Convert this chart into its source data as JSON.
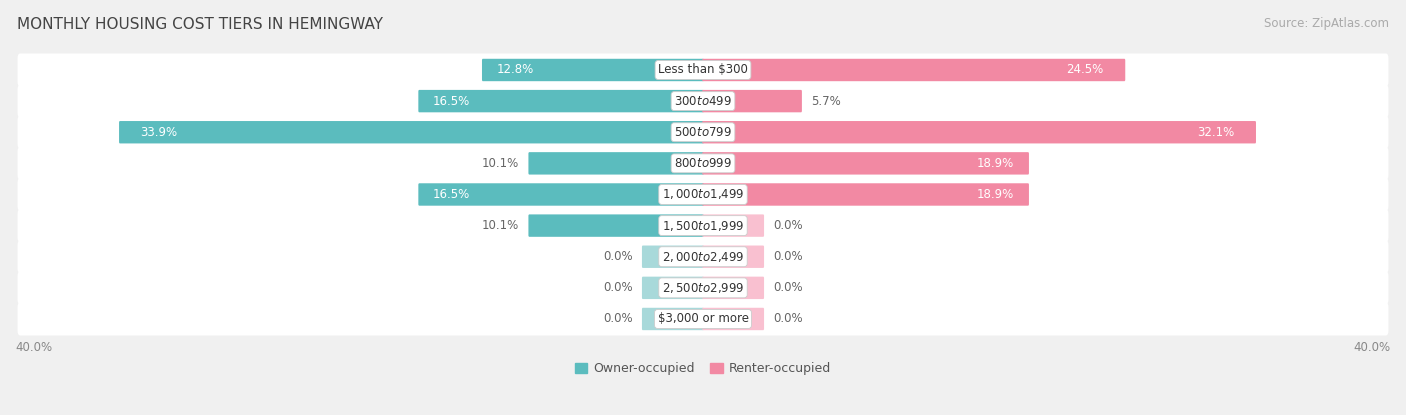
{
  "title": "MONTHLY HOUSING COST TIERS IN HEMINGWAY",
  "source": "Source: ZipAtlas.com",
  "categories": [
    "Less than $300",
    "$300 to $499",
    "$500 to $799",
    "$800 to $999",
    "$1,000 to $1,499",
    "$1,500 to $1,999",
    "$2,000 to $2,499",
    "$2,500 to $2,999",
    "$3,000 or more"
  ],
  "owner_values": [
    12.8,
    16.5,
    33.9,
    10.1,
    16.5,
    10.1,
    0.0,
    0.0,
    0.0
  ],
  "renter_values": [
    24.5,
    5.7,
    32.1,
    18.9,
    18.9,
    0.0,
    0.0,
    0.0,
    0.0
  ],
  "owner_color": "#5bbcbe",
  "renter_color": "#f289a3",
  "owner_color_light": "#a8d9da",
  "renter_color_light": "#f9c0d0",
  "axis_max": 40.0,
  "bg_color": "#f0f0f0",
  "row_bg_color": "#f8f8f8",
  "bar_bg_color": "#ffffff",
  "title_fontsize": 11,
  "source_fontsize": 8.5,
  "bar_label_fontsize": 8.5,
  "category_fontsize": 8.5,
  "legend_fontsize": 9,
  "axis_label_fontsize": 8.5,
  "stub_size": 3.5
}
